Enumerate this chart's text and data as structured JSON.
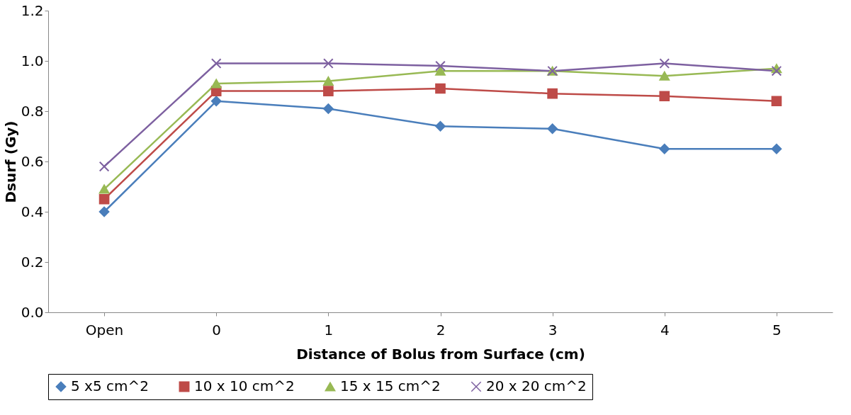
{
  "chart_data": {
    "type": "line",
    "xlabel": "Distance of Bolus from Surface (cm)",
    "ylabel": "Dsurf (Gy)",
    "categories": [
      "Open",
      "0",
      "1",
      "2",
      "3",
      "4",
      "5"
    ],
    "series": [
      {
        "name": "5 x5 cm^2",
        "color": "#4a7ebb",
        "marker": "diamond",
        "values": [
          0.4,
          0.84,
          0.81,
          0.74,
          0.73,
          0.65,
          0.65
        ]
      },
      {
        "name": "10 x 10 cm^2",
        "color": "#be4b48",
        "marker": "square",
        "values": [
          0.45,
          0.88,
          0.88,
          0.89,
          0.87,
          0.86,
          0.84
        ]
      },
      {
        "name": "15 x 15 cm^2",
        "color": "#98b954",
        "marker": "triangle",
        "values": [
          0.49,
          0.91,
          0.92,
          0.96,
          0.96,
          0.94,
          0.97
        ]
      },
      {
        "name": "20 x 20 cm^2",
        "color": "#7d60a0",
        "marker": "cross",
        "values": [
          0.58,
          0.99,
          0.99,
          0.98,
          0.96,
          0.99,
          0.96
        ]
      }
    ],
    "ylim": [
      0,
      1.2
    ],
    "yticks": [
      {
        "value": 0,
        "label": "0.0"
      },
      0.2,
      0.4,
      0.6,
      0.8,
      {
        "value": 1,
        "label": "1.0"
      },
      1.2
    ],
    "grid": false,
    "legend": "bottom",
    "line_style": "solid"
  }
}
